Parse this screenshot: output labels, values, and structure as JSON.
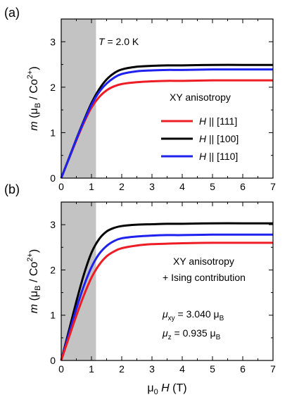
{
  "chart_data": [
    {
      "type": "line",
      "panel_label": "(a)",
      "xlim": [
        0,
        7
      ],
      "ylim": [
        0,
        3.5
      ],
      "xticks": [
        "0",
        "1",
        "2",
        "3",
        "4",
        "5",
        "6",
        "7"
      ],
      "yticks": [
        "0",
        "1",
        "2",
        "3"
      ],
      "ylabel": {
        "pre": "m",
        "mid": " (μ",
        "sub": "B",
        "mid2": " / Co",
        "sup": "2+",
        "post": ")"
      },
      "xlabel": "",
      "shaded_region": [
        0,
        1.15
      ],
      "annotation": {
        "var": "T",
        "rest": " = 2.0 K"
      },
      "legend_title": "XY anisotropy",
      "legend_placement": "center-right",
      "series": [
        {
          "label_var": "H",
          "label_rest": " || [111]",
          "color": "#ee1c25",
          "x": [
            0,
            0.25,
            0.5,
            0.75,
            1.0,
            1.25,
            1.5,
            1.75,
            2.0,
            2.5,
            3.0,
            3.5,
            4.0,
            5.0,
            6.0,
            7.0
          ],
          "y": [
            0,
            0.42,
            0.83,
            1.22,
            1.55,
            1.78,
            1.93,
            2.02,
            2.07,
            2.11,
            2.13,
            2.14,
            2.14,
            2.15,
            2.15,
            2.15
          ]
        },
        {
          "label_var": "H",
          "label_rest": " || [100]",
          "color": "#000000",
          "x": [
            0,
            0.25,
            0.5,
            0.75,
            1.0,
            1.25,
            1.5,
            1.75,
            2.0,
            2.5,
            3.0,
            3.5,
            4.0,
            5.0,
            6.0,
            7.0
          ],
          "y": [
            0,
            0.43,
            0.86,
            1.27,
            1.65,
            1.95,
            2.17,
            2.31,
            2.39,
            2.45,
            2.47,
            2.48,
            2.48,
            2.49,
            2.49,
            2.49
          ]
        },
        {
          "label_var": "H",
          "label_rest": " || [110]",
          "color": "#1f22ee",
          "x": [
            0,
            0.25,
            0.5,
            0.75,
            1.0,
            1.25,
            1.5,
            1.75,
            2.0,
            2.5,
            3.0,
            3.5,
            4.0,
            5.0,
            6.0,
            7.0
          ],
          "y": [
            0,
            0.42,
            0.85,
            1.25,
            1.61,
            1.89,
            2.08,
            2.21,
            2.29,
            2.35,
            2.37,
            2.38,
            2.38,
            2.39,
            2.39,
            2.39
          ]
        }
      ]
    },
    {
      "type": "line",
      "panel_label": "(b)",
      "xlim": [
        0,
        7
      ],
      "ylim": [
        0,
        3.5
      ],
      "xticks": [
        "0",
        "1",
        "2",
        "3",
        "4",
        "5",
        "6",
        "7"
      ],
      "yticks": [
        "0",
        "1",
        "2",
        "3"
      ],
      "ylabel": {
        "pre": "m",
        "mid": " (μ",
        "sub": "B",
        "mid2": " / Co",
        "sup": "2+",
        "post": ")"
      },
      "xlabel": {
        "pre": "μ",
        "sub": "0",
        "mid": " H",
        "post": " (T)"
      },
      "shaded_region": [
        0,
        1.15
      ],
      "text_lines": [
        "XY anisotropy",
        "+ Ising contribution"
      ],
      "params": [
        {
          "sym": "μ",
          "sub": "xy",
          "value": " = 3.040  μ",
          "unit_sub": "B"
        },
        {
          "sym": "μ",
          "sub": "z",
          "value": " =  0.935  μ",
          "unit_sub": "B"
        }
      ],
      "series": [
        {
          "name": "",
          "color": "#000000",
          "x": [
            0,
            0.25,
            0.5,
            0.75,
            1.0,
            1.25,
            1.5,
            1.75,
            2.0,
            2.5,
            3.0,
            3.5,
            4.0,
            5.0,
            6.0,
            7.0
          ],
          "y": [
            0,
            0.65,
            1.3,
            1.9,
            2.38,
            2.68,
            2.85,
            2.93,
            2.97,
            3.0,
            3.01,
            3.02,
            3.02,
            3.03,
            3.03,
            3.03
          ]
        },
        {
          "name": "",
          "color": "#1f22ee",
          "x": [
            0,
            0.25,
            0.5,
            0.75,
            1.0,
            1.25,
            1.5,
            1.75,
            2.0,
            2.5,
            3.0,
            3.5,
            4.0,
            5.0,
            6.0,
            7.0
          ],
          "y": [
            0,
            0.58,
            1.14,
            1.65,
            2.06,
            2.35,
            2.53,
            2.64,
            2.7,
            2.74,
            2.76,
            2.77,
            2.77,
            2.78,
            2.78,
            2.78
          ]
        },
        {
          "name": "",
          "color": "#ee1c25",
          "x": [
            0,
            0.25,
            0.5,
            0.75,
            1.0,
            1.25,
            1.5,
            1.75,
            2.0,
            2.5,
            3.0,
            3.5,
            4.0,
            5.0,
            6.0,
            7.0
          ],
          "y": [
            0,
            0.5,
            0.99,
            1.44,
            1.83,
            2.11,
            2.3,
            2.41,
            2.48,
            2.54,
            2.57,
            2.58,
            2.59,
            2.6,
            2.6,
            2.6
          ]
        }
      ]
    }
  ]
}
